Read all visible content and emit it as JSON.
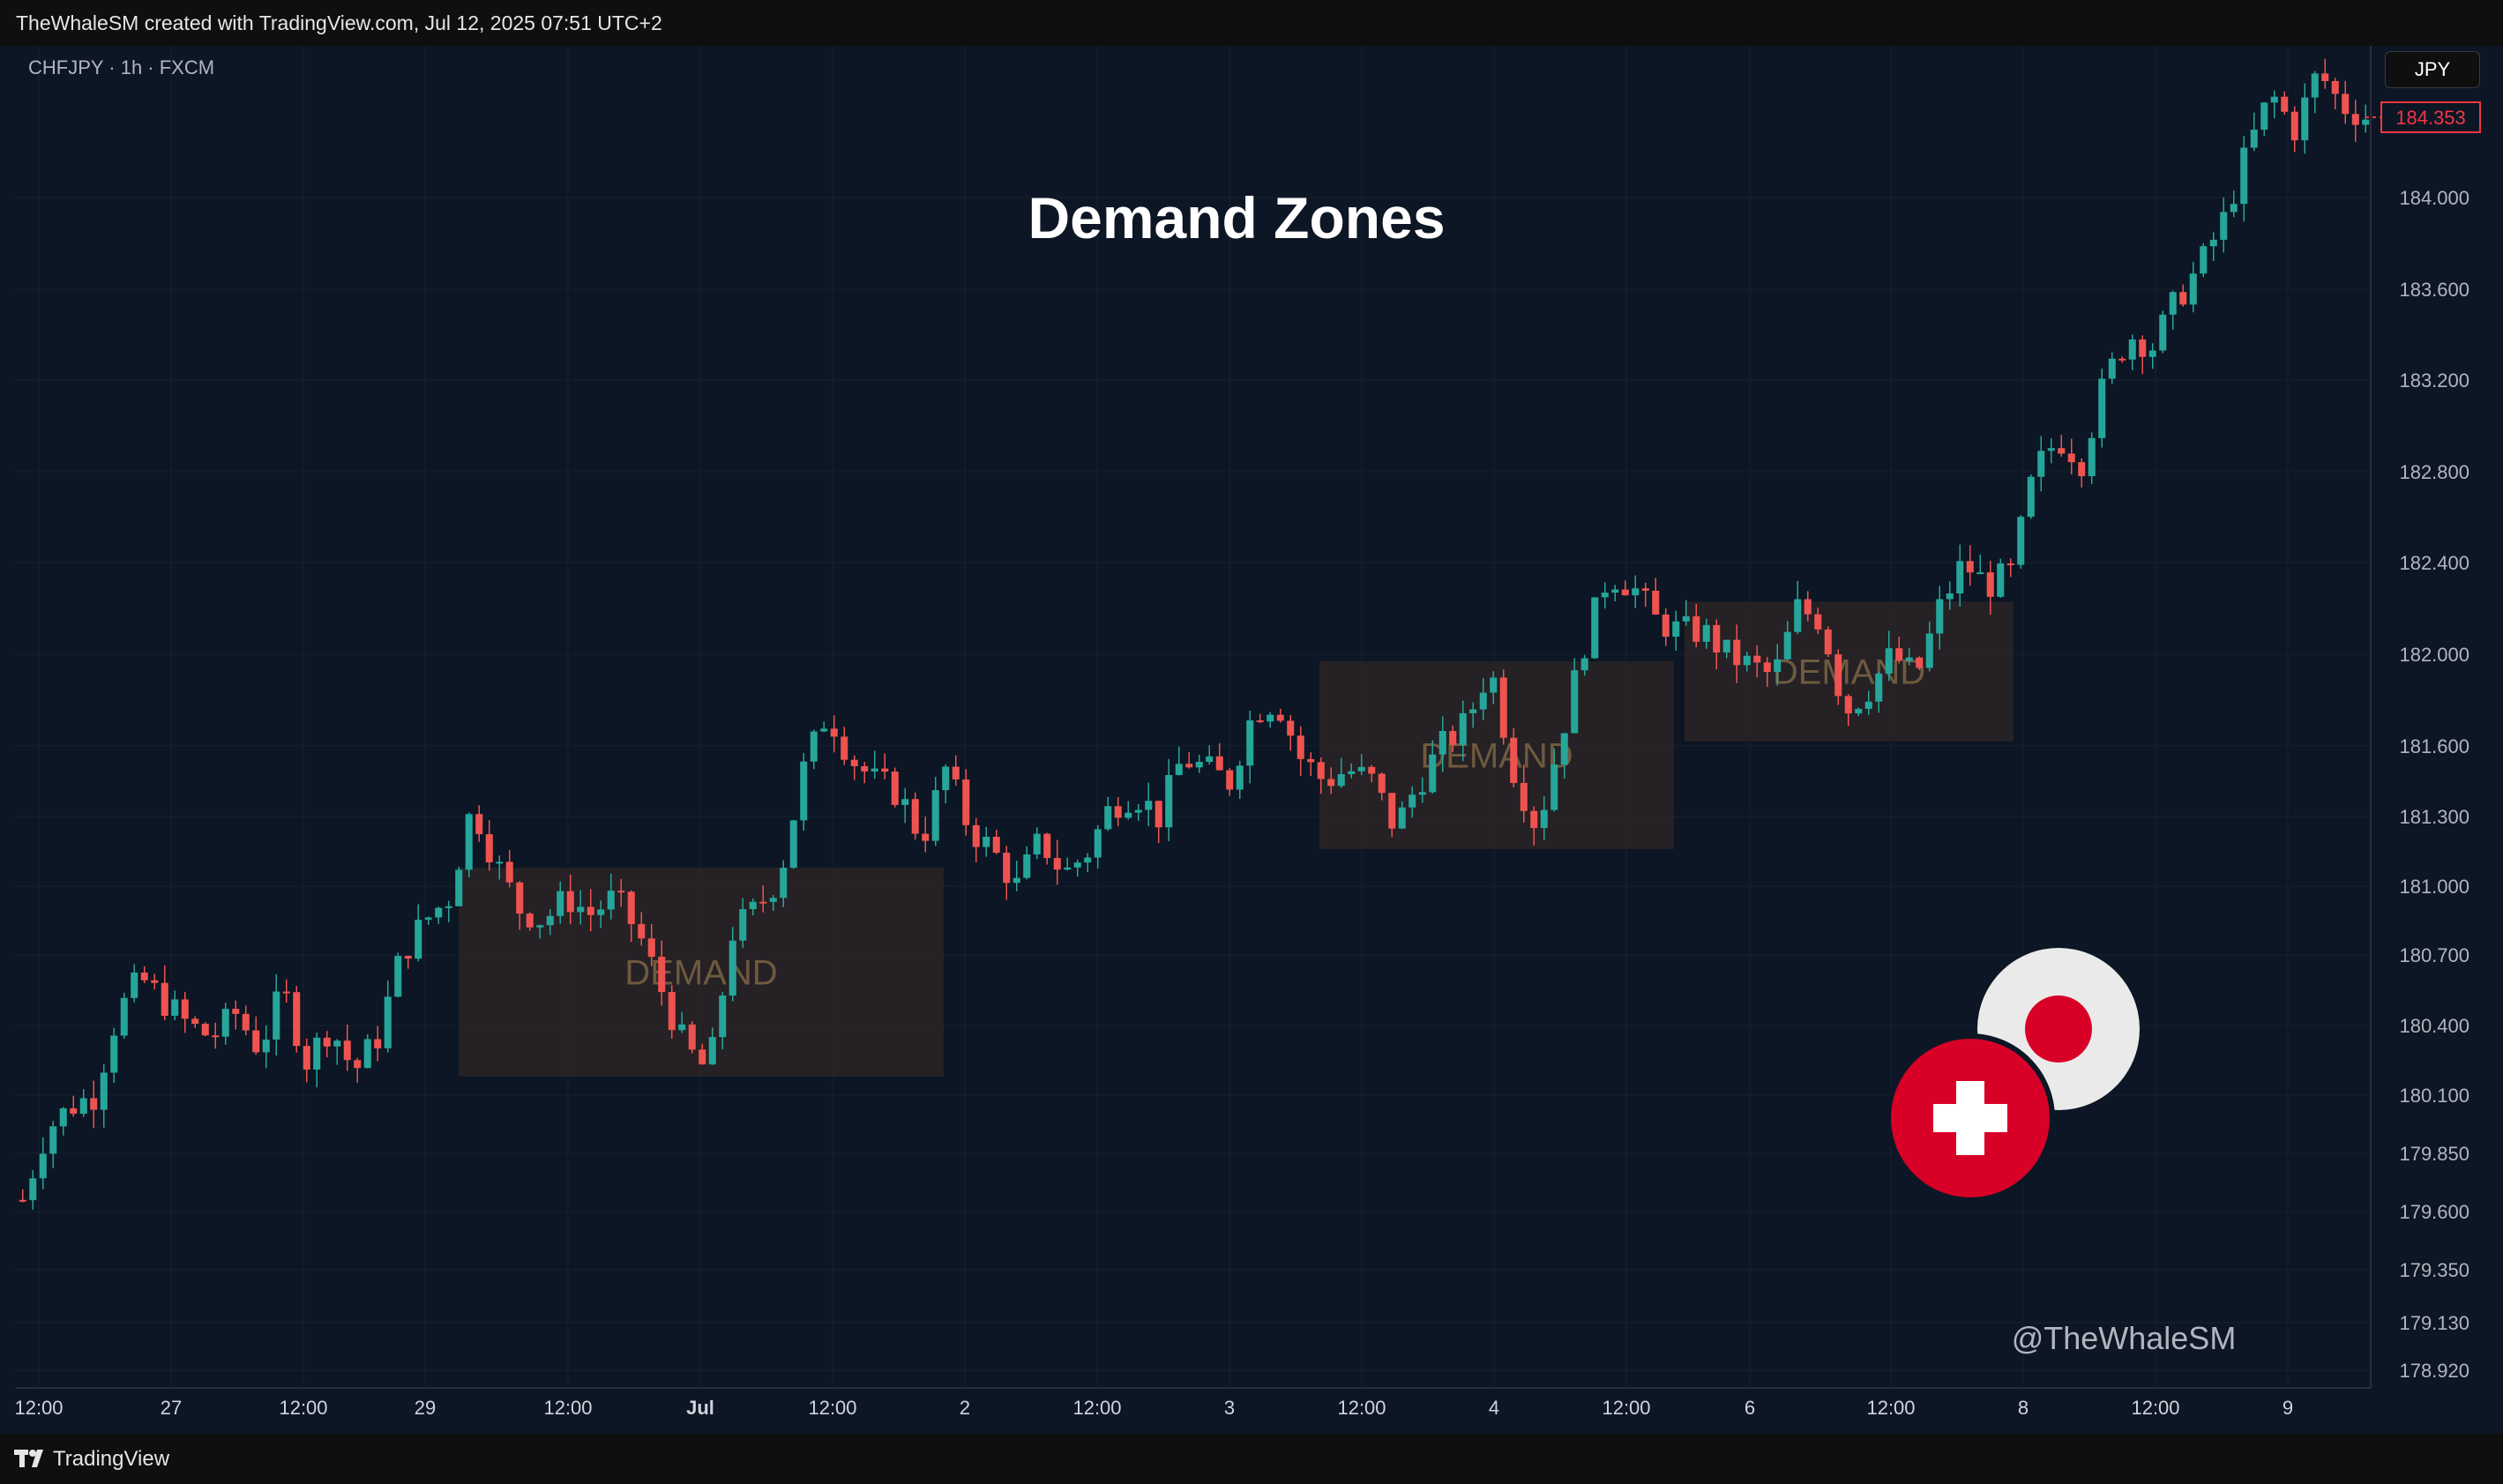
{
  "header": {
    "attribution": "TheWhaleSM created with TradingView.com, Jul 12, 2025 07:51 UTC+2"
  },
  "footer": {
    "brand": "TradingView"
  },
  "chart_data": {
    "type": "candlestick",
    "title": "Demand Zones",
    "symbol": "CHFJPY · 1h · FXCM",
    "currency": "JPY",
    "last_price": "184.353",
    "watermark": "@TheWhaleSM",
    "y_ticks": [
      "184.000",
      "183.600",
      "183.200",
      "182.800",
      "182.400",
      "182.000",
      "181.600",
      "181.300",
      "181.000",
      "180.700",
      "180.400",
      "180.100",
      "179.850",
      "179.600",
      "179.350",
      "179.130",
      "178.920"
    ],
    "x_ticks": [
      "12:00",
      "27",
      "12:00",
      "29",
      "12:00",
      "Jul",
      "12:00",
      "2",
      "12:00",
      "3",
      "12:00",
      "4",
      "12:00",
      "6",
      "12:00",
      "8",
      "12:00",
      "9"
    ],
    "demand_zones": [
      {
        "label": "DEMAND",
        "x_start": "Jun 29 20:00",
        "x_end": "Jul 2 02:00",
        "price_low": 180.18,
        "price_high": 181.08
      },
      {
        "label": "DEMAND",
        "x_start": "Jul 3 07:00",
        "x_end": "Jul 4 20:00",
        "price_low": 181.16,
        "price_high": 181.97
      },
      {
        "label": "DEMAND",
        "x_start": "Jul 6 02:00",
        "x_end": "Jul 8 10:00",
        "price_low": 181.62,
        "price_high": 182.23
      }
    ],
    "close_path": [
      179.65,
      179.95,
      180.05,
      180.1,
      180.45,
      180.6,
      180.5,
      180.4,
      180.35,
      180.45,
      180.3,
      180.55,
      180.25,
      180.4,
      180.2,
      180.35,
      180.7,
      180.85,
      180.95,
      181.35,
      181.1,
      180.9,
      180.85,
      180.95,
      180.88,
      180.95,
      180.8,
      180.55,
      180.3,
      180.2,
      180.8,
      180.9,
      181.05,
      181.5,
      181.75,
      181.55,
      181.45,
      181.4,
      181.2,
      181.5,
      181.25,
      181.15,
      181.0,
      181.2,
      181.05,
      181.15,
      181.35,
      181.4,
      181.3,
      181.55,
      181.5,
      181.45,
      181.75,
      181.8,
      181.55,
      181.45,
      181.5,
      181.45,
      181.25,
      181.45,
      181.6,
      181.7,
      181.95,
      181.5,
      181.25,
      181.65,
      182.05,
      182.35,
      182.3,
      182.15,
      182.1,
      182.1,
      182.0,
      181.95,
      181.9,
      182.2,
      182.15,
      181.75,
      181.85,
      182.0,
      181.9,
      182.2,
      182.4,
      182.3,
      182.35,
      182.8,
      182.95,
      182.85,
      183.2,
      183.4,
      183.35,
      183.55,
      183.7,
      183.9,
      184.2,
      184.45,
      184.3,
      184.55,
      184.4,
      184.353
    ],
    "ohlc_shown": "approximate hourly candles, green=up, red=down"
  }
}
